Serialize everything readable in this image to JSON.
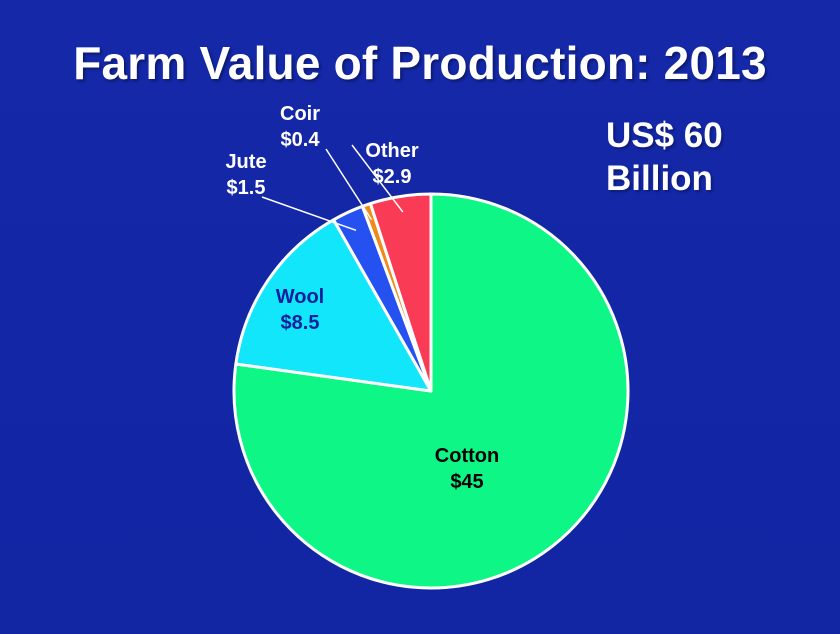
{
  "title": "Farm Value of Production: 2013",
  "total": {
    "line1": "US$ 60",
    "line2": "Billion"
  },
  "colors": {
    "background": "#1327a6",
    "Cotton": "#0ef686",
    "Wool": "#12e6fa",
    "Jute": "#2451f0",
    "Coir": "#f08a1a",
    "Other": "#fa3b55"
  },
  "chart_data": {
    "type": "pie",
    "title": "Farm Value of Production: 2013",
    "unit": "US$ billion",
    "slices": [
      {
        "label": "Cotton",
        "value_label": "$45",
        "value": 45
      },
      {
        "label": "Wool",
        "value_label": "$8.5",
        "value": 8.5
      },
      {
        "label": "Jute",
        "value_label": "$1.5",
        "value": 1.5
      },
      {
        "label": "Coir",
        "value_label": "$0.4",
        "value": 0.4
      },
      {
        "label": "Other",
        "value_label": "$2.9",
        "value": 2.9
      }
    ]
  }
}
